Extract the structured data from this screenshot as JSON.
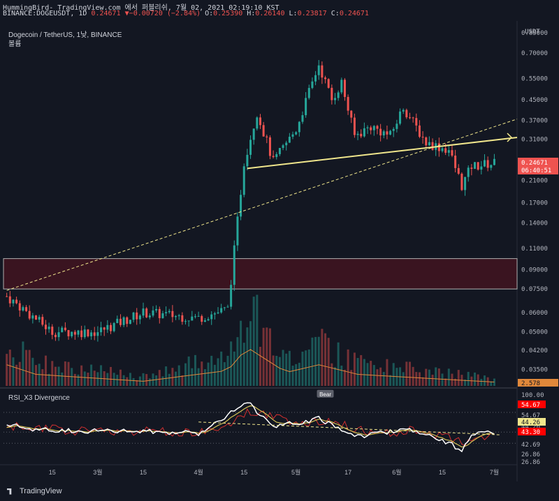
{
  "header": {
    "publish_line": "HummingBird- TradingView.com 에서 퍼블리쉬, 7월 02, 2021 02:19:10 KST",
    "symbol": "BINANCE:DOGEUSDT, 1D",
    "last": "0.24671",
    "change": "−0.00720 (−2.84%)",
    "open_label": "O:",
    "open": "0.25390",
    "high_label": "H:",
    "high": "0.26140",
    "low_label": "L:",
    "low": "0.23817",
    "close_label": "C:",
    "close": "0.24671"
  },
  "chart_title": "Dogecoin / TetherUS, 1낮, BINANCE",
  "volume_label": "볼륨",
  "rsi_label": "RSI_X3 Divergence",
  "bear_label": "Bear",
  "brand": "TradingView",
  "colors": {
    "up": "#26a69a",
    "down": "#ef5350",
    "trend": "#f0e68c",
    "zone": "#3a1420",
    "bg": "#131722",
    "rsi": "#ffffff",
    "rsi_signal": "#d4c054",
    "rsi_slow": "#d32f2f"
  },
  "chart_data": {
    "type": "candlestick",
    "price_axis": {
      "currency": "USDT",
      "scale": "log",
      "ticks": [
        "0.85000",
        "0.70000",
        "0.55000",
        "0.45000",
        "0.37000",
        "0.31000",
        "0.21000",
        "0.17000",
        "0.14000",
        "0.11000",
        "0.09000",
        "0.07500",
        "0.06000",
        "0.05000",
        "0.04200",
        "0.03500"
      ],
      "last_price": "0.24671",
      "countdown": "06:40:51",
      "volume_badge": "2.578"
    },
    "time_axis": {
      "ticks": [
        "15",
        "3월",
        "15",
        "4월",
        "15",
        "5월",
        "17",
        "6월",
        "15",
        "7월"
      ]
    },
    "rsi_axis": {
      "ticks": [
        "100.00",
        "54.67",
        "44.26",
        "42.69",
        "26.86",
        "26.86"
      ],
      "badges": [
        {
          "value": "54.67",
          "color": "#ff0000"
        },
        {
          "value": "44.26",
          "color": "#f0e68c"
        },
        {
          "value": "43.30",
          "color": "#ff0000"
        }
      ]
    },
    "resistance_zone": [
      0.075,
      0.1
    ],
    "anchors": [
      {
        "date": "2021-02-01",
        "price": 0.07
      },
      {
        "date": "2021-02-15",
        "price": 0.05
      },
      {
        "date": "2021-03-01",
        "price": 0.05
      },
      {
        "date": "2021-03-15",
        "price": 0.06
      },
      {
        "date": "2021-04-01",
        "price": 0.057
      },
      {
        "date": "2021-04-10",
        "price": 0.062
      },
      {
        "date": "2021-04-15",
        "price": 0.25
      },
      {
        "date": "2021-04-19",
        "price": 0.4
      },
      {
        "date": "2021-04-24",
        "price": 0.25
      },
      {
        "date": "2021-05-01",
        "price": 0.34
      },
      {
        "date": "2021-05-08",
        "price": 0.63
      },
      {
        "date": "2021-05-12",
        "price": 0.45
      },
      {
        "date": "2021-05-15",
        "price": 0.53
      },
      {
        "date": "2021-05-19",
        "price": 0.32
      },
      {
        "date": "2021-05-24",
        "price": 0.35
      },
      {
        "date": "2021-05-30",
        "price": 0.32
      },
      {
        "date": "2021-06-03",
        "price": 0.42
      },
      {
        "date": "2021-06-10",
        "price": 0.3
      },
      {
        "date": "2021-06-17",
        "price": 0.28
      },
      {
        "date": "2021-06-21",
        "price": 0.2
      },
      {
        "date": "2021-06-24",
        "price": 0.24
      },
      {
        "date": "2021-07-01",
        "price": 0.247
      }
    ],
    "volume_anchors": [
      {
        "date": "2021-02-01",
        "value": 0.55
      },
      {
        "date": "2021-02-10",
        "value": 0.3
      },
      {
        "date": "2021-03-15",
        "value": 0.12
      },
      {
        "date": "2021-04-10",
        "value": 0.4
      },
      {
        "date": "2021-04-16",
        "value": 1.0
      },
      {
        "date": "2021-04-28",
        "value": 0.35
      },
      {
        "date": "2021-05-08",
        "value": 0.55
      },
      {
        "date": "2021-05-20",
        "value": 0.3
      },
      {
        "date": "2021-06-20",
        "value": 0.15
      },
      {
        "date": "2021-07-01",
        "value": 0.1
      }
    ],
    "rsi_anchors": [
      {
        "date": "2021-02-01",
        "value": 56
      },
      {
        "date": "2021-02-10",
        "value": 48
      },
      {
        "date": "2021-03-01",
        "value": 46
      },
      {
        "date": "2021-03-20",
        "value": 45
      },
      {
        "date": "2021-04-01",
        "value": 42
      },
      {
        "date": "2021-04-16",
        "value": 92
      },
      {
        "date": "2021-04-24",
        "value": 52
      },
      {
        "date": "2021-05-08",
        "value": 65
      },
      {
        "date": "2021-05-20",
        "value": 38
      },
      {
        "date": "2021-06-05",
        "value": 50
      },
      {
        "date": "2021-06-21",
        "value": 18
      },
      {
        "date": "2021-06-25",
        "value": 42
      },
      {
        "date": "2021-07-01",
        "value": 43.3
      }
    ],
    "trendlines": [
      {
        "style": "solid",
        "points": [
          {
            "date": "2021-04-16",
            "price": 0.235
          },
          {
            "date": "2021-07-08",
            "price": 0.315
          }
        ]
      },
      {
        "style": "dashed",
        "points": [
          {
            "date": "2021-02-01",
            "price": 0.074
          },
          {
            "date": "2021-07-08",
            "price": 0.375
          }
        ]
      }
    ],
    "rsi_trendline": {
      "style": "dashed",
      "points": [
        {
          "date": "2021-04-01",
          "value": 60
        },
        {
          "date": "2021-07-03",
          "value": 40
        }
      ]
    },
    "date_range": [
      "2021-01-31",
      "2021-07-08"
    ]
  }
}
